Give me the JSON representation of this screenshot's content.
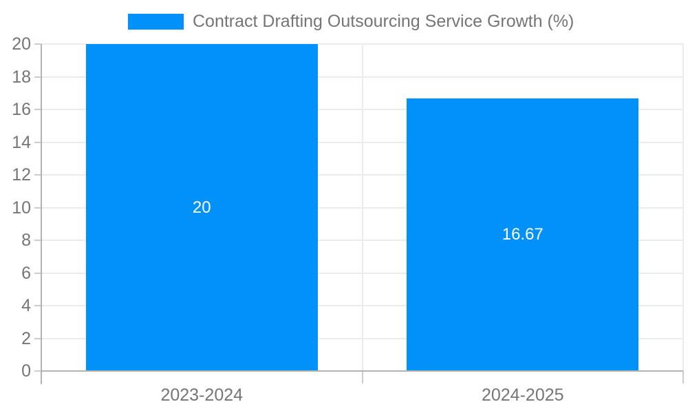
{
  "chart_data": {
    "type": "bar",
    "title": "Contract Drafting Outsourcing Service Growth (%)",
    "legend_position": "top",
    "categories": [
      "2023-2024",
      "2024-2025"
    ],
    "series": [
      {
        "name": "Contract Drafting Outsourcing Service Growth (%)",
        "values": [
          20,
          16.67
        ]
      }
    ],
    "value_labels": [
      "20",
      "16.67"
    ],
    "xlabel": "",
    "ylabel": "",
    "ylim": [
      0,
      20
    ],
    "yticks": [
      0,
      2,
      4,
      6,
      8,
      10,
      12,
      14,
      16,
      18,
      20
    ],
    "grid": true,
    "colors": {
      "bar": "#0191f9",
      "value_label_text": "#ffffff",
      "legend_text": "#757575",
      "axis_label_text": "#757575",
      "gridline": "#ebebeb",
      "axis_line": "#b2b2b2",
      "tick": "#cccccc",
      "background": "#ffffff"
    }
  }
}
